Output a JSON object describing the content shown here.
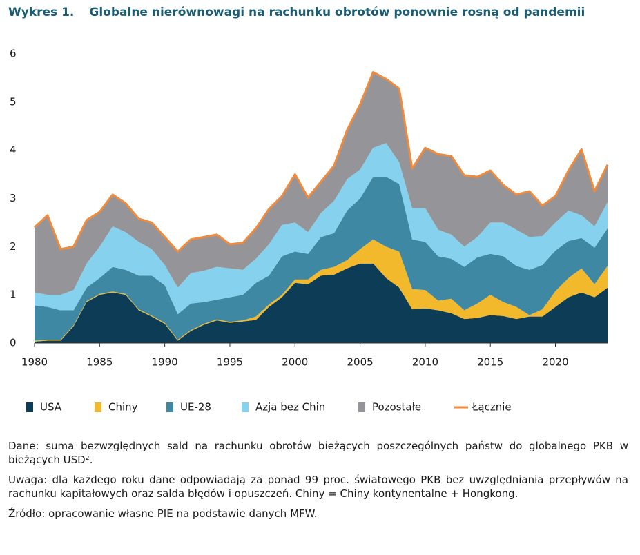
{
  "chart_data": {
    "type": "stacked_area",
    "label": "Wykres 1.",
    "title": "Globalne nierównowagi na rachunku obrotów ponownie rosną od pandemii",
    "x": [
      1980,
      1981,
      1982,
      1983,
      1984,
      1985,
      1986,
      1987,
      1988,
      1989,
      1990,
      1991,
      1992,
      1993,
      1994,
      1995,
      1996,
      1997,
      1998,
      1999,
      2000,
      2001,
      2002,
      2003,
      2004,
      2005,
      2006,
      2007,
      2008,
      2009,
      2010,
      2011,
      2012,
      2013,
      2014,
      2015,
      2016,
      2017,
      2018,
      2019,
      2020,
      2021,
      2022,
      2023,
      2024
    ],
    "xlim": [
      1980,
      2024
    ],
    "xticks": [
      1980,
      1985,
      1990,
      1995,
      2000,
      2005,
      2010,
      2015,
      2020
    ],
    "ylim": [
      0,
      6
    ],
    "yticks": [
      0,
      1,
      2,
      3,
      4,
      5,
      6
    ],
    "series": [
      {
        "name": "USA",
        "color": "#0d3d56",
        "values": [
          0.03,
          0.05,
          0.05,
          0.35,
          0.85,
          1.0,
          1.05,
          1.0,
          0.68,
          0.55,
          0.4,
          0.05,
          0.25,
          0.38,
          0.47,
          0.42,
          0.45,
          0.48,
          0.75,
          0.95,
          1.25,
          1.22,
          1.4,
          1.42,
          1.55,
          1.65,
          1.65,
          1.35,
          1.15,
          0.7,
          0.72,
          0.68,
          0.62,
          0.5,
          0.52,
          0.58,
          0.56,
          0.5,
          0.55,
          0.55,
          0.75,
          0.95,
          1.05,
          0.95,
          1.15
        ]
      },
      {
        "name": "Chiny",
        "color": "#f2b92c",
        "values": [
          0.02,
          0.02,
          0.02,
          0.02,
          0.02,
          0.02,
          0.02,
          0.02,
          0.02,
          0.02,
          0.02,
          0.02,
          0.02,
          0.02,
          0.02,
          0.02,
          0.02,
          0.07,
          0.05,
          0.05,
          0.07,
          0.1,
          0.12,
          0.16,
          0.17,
          0.3,
          0.5,
          0.65,
          0.75,
          0.42,
          0.38,
          0.2,
          0.3,
          0.18,
          0.3,
          0.42,
          0.29,
          0.25,
          0.03,
          0.15,
          0.33,
          0.4,
          0.5,
          0.27,
          0.45
        ]
      },
      {
        "name": "UE-28",
        "color": "#3e88a4",
        "values": [
          0.73,
          0.68,
          0.61,
          0.31,
          0.28,
          0.33,
          0.51,
          0.5,
          0.7,
          0.83,
          0.78,
          0.53,
          0.55,
          0.45,
          0.41,
          0.51,
          0.53,
          0.7,
          0.6,
          0.8,
          0.58,
          0.53,
          0.68,
          0.7,
          1.03,
          1.05,
          1.3,
          1.45,
          1.4,
          1.03,
          1.0,
          0.92,
          0.83,
          0.9,
          0.96,
          0.85,
          0.95,
          0.85,
          0.94,
          0.92,
          0.84,
          0.77,
          0.63,
          0.76,
          0.78
        ]
      },
      {
        "name": "Azja bez Chin",
        "color": "#86d2ee",
        "values": [
          0.27,
          0.25,
          0.32,
          0.42,
          0.5,
          0.65,
          0.84,
          0.78,
          0.7,
          0.55,
          0.42,
          0.55,
          0.63,
          0.65,
          0.68,
          0.6,
          0.52,
          0.5,
          0.65,
          0.65,
          0.6,
          0.45,
          0.5,
          0.67,
          0.65,
          0.6,
          0.6,
          0.7,
          0.45,
          0.65,
          0.7,
          0.55,
          0.5,
          0.42,
          0.42,
          0.65,
          0.7,
          0.75,
          0.68,
          0.6,
          0.58,
          0.63,
          0.47,
          0.44,
          0.54
        ]
      },
      {
        "name": "Pozostałe",
        "color": "#959599",
        "values": [
          1.35,
          1.65,
          0.95,
          0.9,
          0.9,
          0.72,
          0.66,
          0.6,
          0.48,
          0.55,
          0.58,
          0.75,
          0.7,
          0.7,
          0.67,
          0.5,
          0.56,
          0.63,
          0.73,
          0.6,
          1.0,
          0.72,
          0.65,
          0.73,
          1.02,
          1.35,
          1.57,
          1.33,
          1.53,
          0.82,
          1.25,
          1.57,
          1.63,
          1.48,
          1.25,
          1.08,
          0.78,
          0.73,
          0.95,
          0.63,
          0.55,
          0.83,
          1.37,
          0.73,
          0.78
        ]
      }
    ],
    "total": {
      "name": "Łącznie",
      "color": "#f08a3c",
      "values": [
        2.4,
        2.65,
        1.95,
        2.0,
        2.55,
        2.72,
        3.08,
        2.9,
        2.58,
        2.5,
        2.2,
        1.9,
        2.15,
        2.2,
        2.25,
        2.05,
        2.08,
        2.38,
        2.78,
        3.05,
        3.5,
        3.02,
        3.35,
        3.68,
        4.42,
        4.95,
        5.62,
        5.48,
        5.28,
        3.62,
        4.05,
        3.92,
        3.88,
        3.48,
        3.45,
        3.58,
        3.28,
        3.08,
        3.15,
        2.85,
        3.05,
        3.58,
        4.02,
        3.15,
        3.7
      ]
    },
    "notes": [
      "Dane: suma bezwzględnych sald na rachunku obrotów bieżących poszczególnych państw do globalnego PKB w bieżących USD².",
      "Uwaga: dla każdego roku dane odpowiadają za ponad 99 proc. światowego PKB bez uwzględniania przepływów na rachunku kapitałowych oraz salda błędów i opuszczeń. Chiny = Chiny kontynentalne + Hongkong.",
      "Źródło: opracowanie własne PIE na podstawie danych MFW."
    ]
  }
}
